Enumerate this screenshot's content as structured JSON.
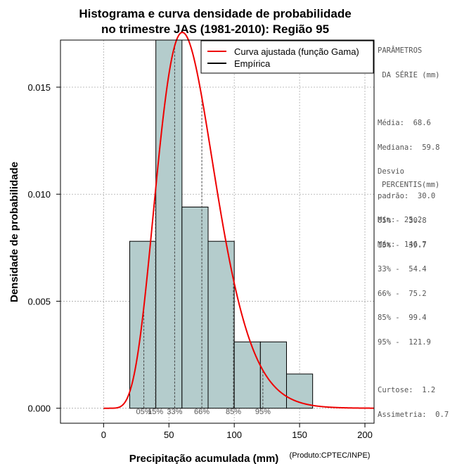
{
  "chart_data": {
    "type": "bar",
    "title": [
      "Histograma e curva densidade de probabilidade",
      "no trimestre JAS (1981-2010): Região 95"
    ],
    "xlabel": "Precipitação acumulada (mm)",
    "ylabel": "Densidade de probabilidade",
    "credit": "(Produto:CPTEC/INPE)",
    "xlim": [
      -33,
      207
    ],
    "ylim": [
      -0.0007,
      0.0172
    ],
    "x_ticks": [
      0,
      50,
      100,
      150,
      200
    ],
    "x_tick_labels": [
      "0",
      "50",
      "100",
      "150",
      "200"
    ],
    "y_ticks": [
      0,
      0.005,
      0.01,
      0.015
    ],
    "y_tick_labels": [
      "0.000",
      "0.005",
      "0.010",
      "0.015"
    ],
    "grid": true,
    "histogram": {
      "name": "Empírica",
      "bin_edges": [
        20,
        40,
        60,
        80,
        100,
        120,
        140,
        160
      ],
      "densities": [
        0.0078,
        0.0172,
        0.0094,
        0.0078,
        0.0031,
        0.0031,
        0.0016
      ],
      "fill": "#b4cccc",
      "edge": "#000000"
    },
    "curve": {
      "name": "Curva ajustada (função Gama)",
      "color": "#ee0000",
      "shape": 8.2,
      "scale": 8.37
    },
    "percentile_lines": [
      {
        "label": "05%",
        "x": 30.8
      },
      {
        "label": "15%",
        "x": 39.7
      },
      {
        "label": "33%",
        "x": 54.4
      },
      {
        "label": "66%",
        "x": 75.2
      },
      {
        "label": "85%",
        "x": 99.4
      },
      {
        "label": "95%",
        "x": 121.9
      }
    ],
    "legend": {
      "position": "top-right",
      "entries": [
        {
          "label": "Curva ajustada (função Gama)",
          "color": "#ee0000"
        },
        {
          "label": "Empírica",
          "color": "#000000"
        }
      ]
    }
  },
  "side_panel": {
    "params_title_1": "PARÂMETROS",
    "params_title_2": " DA SÉRIE (mm)",
    "params": [
      "Média:  68.6",
      "Mediana:  59.8",
      "Desvio",
      "padrão:  30.0",
      "Mín:  25.2",
      "Máx:  146.7"
    ],
    "percentiles_title": "PERCENTIS(mm)",
    "percentiles": [
      "05% -  30.8",
      "15% -  39.7",
      "33% -  54.4",
      "66% -  75.2",
      "85% -  99.4",
      "95% -  121.9"
    ],
    "stats": [
      "Curtose:  1.2",
      "Assimetria:  0.7"
    ]
  }
}
